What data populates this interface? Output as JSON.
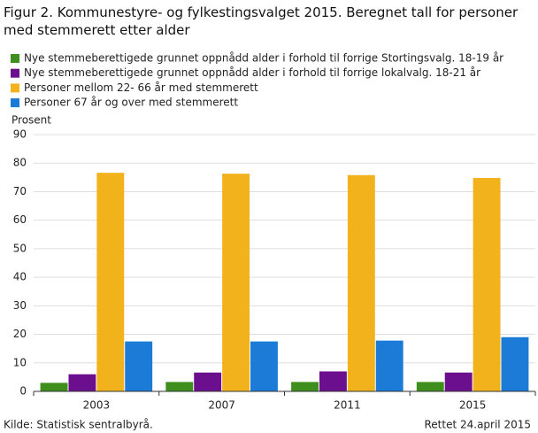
{
  "chart_data": {
    "type": "bar",
    "title": "Figur 2. Kommunestyre- og fylkestingsvalget 2015. Beregnet tall for personer med stemmerett etter alder",
    "y_label": "Prosent",
    "categories": [
      "2003",
      "2007",
      "2011",
      "2015"
    ],
    "series": [
      {
        "name": "Nye stemmeberettigede grunnet oppnådd alder i forhold til forrige Stortingsvalg. 18-19 år",
        "color": "#3f8f1f",
        "values": [
          3,
          3.3,
          3.3,
          3.3
        ]
      },
      {
        "name": "Nye stemmeberettigede grunnet oppnådd alder i forhold til forrige lokalvalg. 18-21 år",
        "color": "#6b0f8f",
        "values": [
          6,
          6.6,
          7,
          6.6
        ]
      },
      {
        "name": "Personer mellom 22- 66 år med stemmerett",
        "color": "#f2b21b",
        "values": [
          76.6,
          76.3,
          75.8,
          74.8
        ]
      },
      {
        "name": "Personer 67 år og over med stemmerett",
        "color": "#1b7bd6",
        "values": [
          17.5,
          17.5,
          17.8,
          19
        ]
      }
    ],
    "ylim": [
      0,
      90
    ],
    "yticks": [
      0,
      10,
      20,
      30,
      40,
      50,
      60,
      70,
      80,
      90
    ],
    "grid": true,
    "source": "Kilde: Statistisk sentralbyrå.",
    "note": "Rettet 24.april 2015"
  }
}
